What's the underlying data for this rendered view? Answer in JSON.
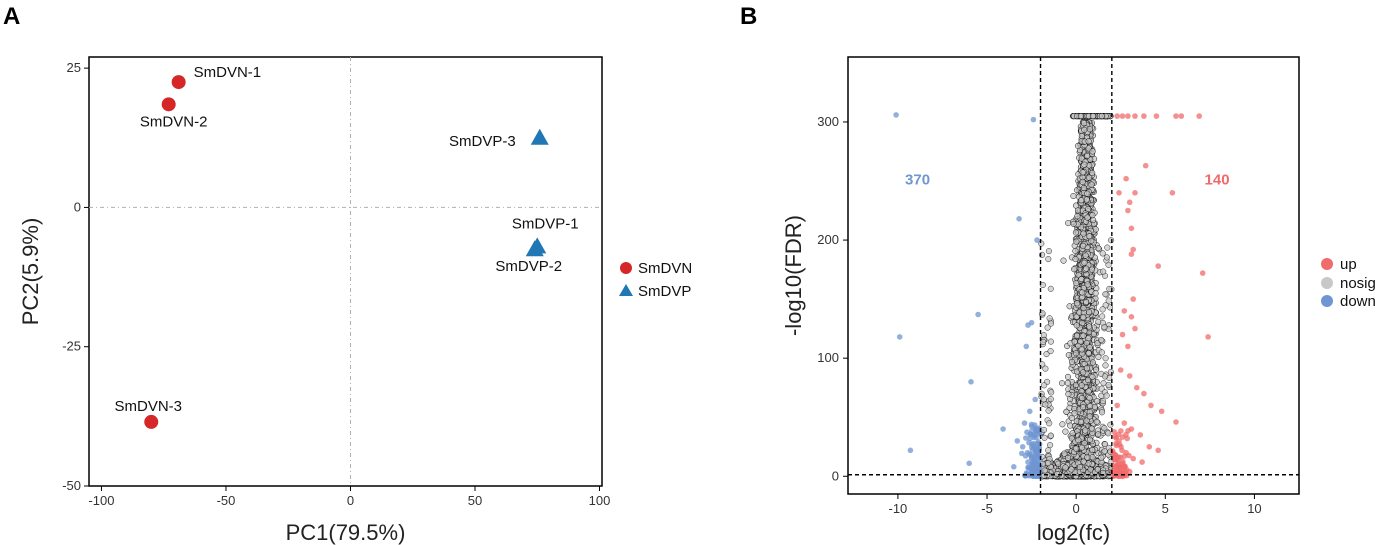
{
  "chart_data": [
    {
      "panel": "A",
      "type": "scatter",
      "title": "",
      "xlabel": "PC1(79.5%)",
      "ylabel": "PC2(5.9%)",
      "xlim": [
        -105,
        101
      ],
      "ylim": [
        -50,
        27
      ],
      "xticks": [
        -100,
        -50,
        0,
        50,
        100
      ],
      "yticks": [
        25,
        0,
        -25,
        -50
      ],
      "xtick_labels": [
        "-100",
        "-50",
        "0",
        "50",
        "100"
      ],
      "ytick_labels": [
        "25",
        "0",
        "-25",
        "-50"
      ],
      "reference_lines": {
        "x": 0,
        "y": 0
      },
      "series": [
        {
          "name": "SmDVN",
          "color": "#d62728",
          "marker": "circle",
          "points": [
            {
              "label": "SmDVN-1",
              "x": -69,
              "y": 22.5
            },
            {
              "label": "SmDVN-2",
              "x": -73,
              "y": 18.5
            },
            {
              "label": "SmDVN-3",
              "x": -80,
              "y": -38.5
            }
          ]
        },
        {
          "name": "SmDVP",
          "color": "#1f77b4",
          "marker": "triangle",
          "points": [
            {
              "label": "SmDVP-3",
              "x": 76,
              "y": 12.5
            },
            {
              "label": "SmDVP-1",
              "x": 75,
              "y": -7
            },
            {
              "label": "SmDVP-2",
              "x": 74,
              "y": -7.5
            }
          ]
        }
      ],
      "legend": [
        "SmDVN",
        "SmDVP"
      ]
    },
    {
      "panel": "B",
      "type": "scatter",
      "title": "",
      "xlabel": "log2(fc)",
      "ylabel": "-log10(FDR)",
      "xlim": [
        -12.8,
        12.5
      ],
      "ylim": [
        -15,
        355
      ],
      "xticks": [
        -10,
        -5,
        0,
        5,
        10
      ],
      "yticks": [
        0,
        100,
        200,
        300
      ],
      "xtick_labels": [
        "-10",
        "-5",
        "0",
        "5",
        "10"
      ],
      "ytick_labels": [
        "0",
        "100",
        "200",
        "300"
      ],
      "thresholds": {
        "x": [
          -2,
          2
        ],
        "y": 1.3
      },
      "counts": {
        "down": "370",
        "up": "140"
      },
      "legend": [
        "up",
        "nosig",
        "down"
      ],
      "colors": {
        "up": "#f06b6b",
        "nosig": "#c8c8c8",
        "down": "#6f96d2"
      },
      "highlight_points": {
        "up": [
          [
            2.3,
            305
          ],
          [
            2.6,
            305
          ],
          [
            2.9,
            305
          ],
          [
            3.3,
            305
          ],
          [
            3.8,
            305
          ],
          [
            4.5,
            305
          ],
          [
            5.6,
            305
          ],
          [
            5.9,
            305
          ],
          [
            6.9,
            305
          ],
          [
            3.9,
            263
          ],
          [
            5.4,
            240
          ],
          [
            2.8,
            252
          ],
          [
            2.4,
            240
          ],
          [
            2.9,
            225
          ],
          [
            3.1,
            210
          ],
          [
            3.2,
            192
          ],
          [
            3.3,
            240
          ],
          [
            3.1,
            188
          ],
          [
            7.1,
            172
          ],
          [
            7.4,
            118
          ],
          [
            4.6,
            178
          ],
          [
            3.0,
            232
          ],
          [
            3.2,
            150
          ],
          [
            2.7,
            140
          ],
          [
            3.1,
            135
          ],
          [
            2.6,
            120
          ],
          [
            2.9,
            110
          ],
          [
            3.3,
            125
          ],
          [
            2.5,
            90
          ],
          [
            3.0,
            85
          ],
          [
            3.4,
            75
          ],
          [
            3.8,
            70
          ],
          [
            4.2,
            60
          ],
          [
            4.8,
            55
          ],
          [
            5.6,
            46
          ],
          [
            2.3,
            60
          ],
          [
            2.7,
            45
          ],
          [
            3.1,
            40
          ],
          [
            3.6,
            35
          ],
          [
            4.1,
            25
          ],
          [
            4.6,
            22
          ],
          [
            2.4,
            30
          ],
          [
            2.8,
            20
          ],
          [
            3.2,
            15
          ],
          [
            3.7,
            12
          ],
          [
            2.2,
            8
          ],
          [
            2.6,
            5
          ],
          [
            3.0,
            4
          ]
        ],
        "down": [
          [
            -10.1,
            306
          ],
          [
            -2.4,
            302
          ],
          [
            -3.2,
            218
          ],
          [
            -2.2,
            200
          ],
          [
            -5.5,
            137
          ],
          [
            -9.9,
            118
          ],
          [
            -2.7,
            128
          ],
          [
            -2.5,
            130
          ],
          [
            -2.8,
            110
          ],
          [
            -5.9,
            80
          ],
          [
            -9.3,
            22
          ],
          [
            -6.0,
            11
          ],
          [
            -4.1,
            40
          ],
          [
            -3.0,
            25
          ],
          [
            -2.6,
            55
          ],
          [
            -2.3,
            65
          ],
          [
            -2.9,
            45
          ],
          [
            -3.3,
            30
          ],
          [
            -2.4,
            35
          ],
          [
            -2.2,
            20
          ],
          [
            -2.7,
            12
          ],
          [
            -3.5,
            8
          ]
        ]
      }
    }
  ]
}
